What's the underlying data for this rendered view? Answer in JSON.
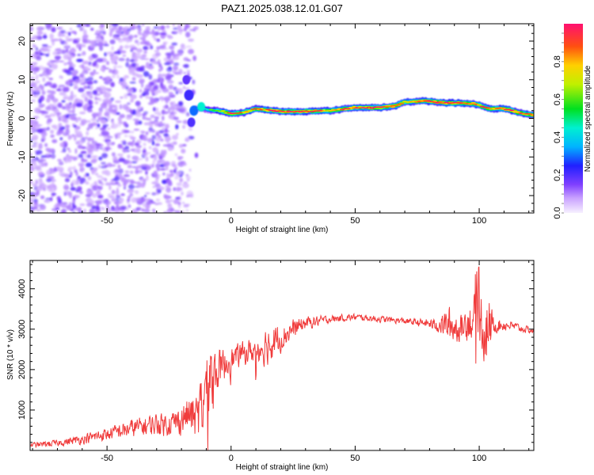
{
  "title": "PAZ1.2025.038.12.01.G07",
  "chart_data": [
    {
      "type": "heatmap",
      "xlabel": "Height of straight line (km)",
      "ylabel": "Frequency (Hz)",
      "xlim": [
        -81,
        122
      ],
      "ylim": [
        -24.5,
        24.5
      ],
      "x_ticks": [
        "-50",
        "0",
        "50",
        "100"
      ],
      "x_tick_values": [
        -50,
        0,
        50,
        100
      ],
      "y_ticks": [
        "-20",
        "-10",
        "0",
        "10",
        "20"
      ],
      "y_tick_values": [
        -20,
        -10,
        0,
        10,
        20
      ],
      "colorbar": {
        "label": "Normalized spectral amplitude",
        "range": [
          0,
          1
        ],
        "ticks": [
          "0.0",
          "0.2",
          "0.4",
          "0.6",
          "0.8"
        ],
        "tick_values": [
          0,
          0.2,
          0.4,
          0.6,
          0.8
        ]
      },
      "noise_region_x": [
        -81,
        -15
      ],
      "ridge": [
        {
          "x": -12,
          "f": 2.5,
          "a": 0.35
        },
        {
          "x": -5,
          "f": 2.0,
          "a": 0.7
        },
        {
          "x": 0,
          "f": 1.2,
          "a": 0.9
        },
        {
          "x": 5,
          "f": 1.5,
          "a": 0.8
        },
        {
          "x": 10,
          "f": 2.5,
          "a": 0.85
        },
        {
          "x": 20,
          "f": 1.8,
          "a": 0.95
        },
        {
          "x": 30,
          "f": 1.8,
          "a": 0.95
        },
        {
          "x": 40,
          "f": 2.0,
          "a": 0.85
        },
        {
          "x": 50,
          "f": 2.8,
          "a": 0.9
        },
        {
          "x": 60,
          "f": 2.8,
          "a": 0.95
        },
        {
          "x": 66,
          "f": 3.2,
          "a": 0.95
        },
        {
          "x": 70,
          "f": 4.2,
          "a": 0.8
        },
        {
          "x": 78,
          "f": 4.5,
          "a": 0.95
        },
        {
          "x": 86,
          "f": 4.0,
          "a": 0.95
        },
        {
          "x": 92,
          "f": 4.0,
          "a": 0.95
        },
        {
          "x": 98,
          "f": 3.8,
          "a": 0.9
        },
        {
          "x": 104,
          "f": 2.5,
          "a": 0.85
        },
        {
          "x": 110,
          "f": 2.5,
          "a": 0.95
        },
        {
          "x": 116,
          "f": 1.5,
          "a": 0.9
        },
        {
          "x": 122,
          "f": 0.8,
          "a": 0.9
        }
      ]
    },
    {
      "type": "line",
      "xlabel": "Height of straight line (km)",
      "ylabel": "SNR (10 * v/v)",
      "xlim": [
        -81,
        122
      ],
      "ylim": [
        0,
        4700
      ],
      "x_ticks": [
        "-50",
        "0",
        "50",
        "100"
      ],
      "x_tick_values": [
        -50,
        0,
        50,
        100
      ],
      "y_ticks": [
        "1000",
        "2000",
        "3000",
        "4000"
      ],
      "y_tick_values": [
        1000,
        2000,
        3000,
        4000
      ],
      "series": [
        {
          "color": "#f03c3c",
          "envelope": [
            [
              -81,
              130,
              80
            ],
            [
              -70,
              180,
              100
            ],
            [
              -60,
              280,
              150
            ],
            [
              -50,
              400,
              200
            ],
            [
              -40,
              550,
              280
            ],
            [
              -30,
              650,
              350
            ],
            [
              -22,
              700,
              400
            ],
            [
              -17,
              900,
              600
            ],
            [
              -14,
              800,
              700
            ],
            [
              -11,
              1300,
              1200
            ],
            [
              -8,
              1800,
              900
            ],
            [
              -5,
              2000,
              600
            ],
            [
              0,
              2250,
              400
            ],
            [
              5,
              2400,
              350
            ],
            [
              10,
              2500,
              400
            ],
            [
              14,
              2600,
              600
            ],
            [
              20,
              2800,
              450
            ],
            [
              25,
              3000,
              300
            ],
            [
              30,
              3150,
              200
            ],
            [
              40,
              3250,
              120
            ],
            [
              50,
              3300,
              100
            ],
            [
              60,
              3250,
              100
            ],
            [
              70,
              3200,
              100
            ],
            [
              78,
              3150,
              120
            ],
            [
              84,
              3100,
              250
            ],
            [
              88,
              3100,
              600
            ],
            [
              92,
              3000,
              400
            ],
            [
              96,
              3200,
              600
            ],
            [
              100,
              3300,
              900
            ],
            [
              103,
              3000,
              1200
            ],
            [
              106,
              3100,
              250
            ],
            [
              112,
              3100,
              150
            ],
            [
              118,
              3000,
              120
            ],
            [
              122,
              2950,
              100
            ]
          ]
        }
      ]
    }
  ]
}
